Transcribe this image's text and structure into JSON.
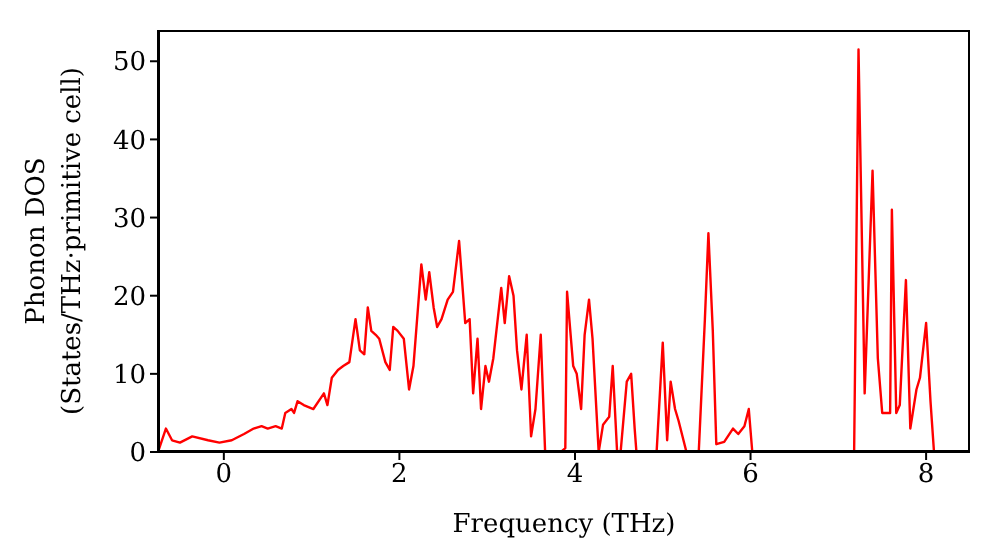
{
  "chart_data": {
    "type": "line",
    "xlabel": "Frequency (THz)",
    "ylabel": "Phonon DOS\n(States/THz·primitive cell)",
    "x": [
      -0.75,
      -0.66,
      -0.59,
      -0.5,
      -0.36,
      -0.18,
      -0.05,
      0.09,
      0.23,
      0.34,
      0.43,
      0.5,
      0.59,
      0.66,
      0.7,
      0.77,
      0.8,
      0.84,
      0.91,
      1.02,
      1.14,
      1.18,
      1.23,
      1.3,
      1.36,
      1.43,
      1.5,
      1.55,
      1.6,
      1.64,
      1.68,
      1.73,
      1.77,
      1.84,
      1.89,
      1.93,
      1.98,
      2.05,
      2.11,
      2.16,
      2.25,
      2.3,
      2.34,
      2.39,
      2.43,
      2.48,
      2.55,
      2.61,
      2.68,
      2.75,
      2.8,
      2.84,
      2.89,
      2.93,
      2.98,
      3.02,
      3.07,
      3.16,
      3.2,
      3.25,
      3.3,
      3.34,
      3.39,
      3.45,
      3.5,
      3.55,
      3.61,
      3.66,
      3.84,
      3.89,
      3.91,
      3.98,
      4.02,
      4.07,
      4.11,
      4.16,
      4.2,
      4.27,
      4.32,
      4.39,
      4.43,
      4.48,
      4.52,
      4.59,
      4.64,
      4.68,
      4.7,
      4.93,
      5.0,
      5.05,
      5.09,
      5.14,
      5.18,
      5.27,
      5.41,
      5.48,
      5.52,
      5.57,
      5.61,
      5.7,
      5.8,
      5.86,
      5.93,
      5.98,
      6.02,
      7.18,
      7.23,
      7.3,
      7.39,
      7.45,
      7.5,
      7.59,
      7.61,
      7.66,
      7.7,
      7.77,
      7.82,
      7.89,
      7.93,
      8.0,
      8.05,
      8.09
    ],
    "series": [
      {
        "color": "#ff0000",
        "values": [
          0,
          3,
          1.5,
          1.2,
          2,
          1.5,
          1.2,
          1.5,
          2.3,
          3,
          3.3,
          3,
          3.3,
          3,
          5,
          5.5,
          5,
          6.5,
          6,
          5.5,
          7.5,
          6,
          9.5,
          10.5,
          11,
          11.5,
          17,
          13,
          12.5,
          18.5,
          15.5,
          15,
          14.5,
          11.5,
          10.5,
          16,
          15.5,
          14.5,
          8,
          11,
          24,
          19.5,
          23,
          18.5,
          16,
          17,
          19.5,
          20.5,
          27,
          16.5,
          17,
          7.5,
          14.5,
          5.5,
          11,
          9,
          12,
          21,
          16.5,
          22.5,
          20,
          13,
          8,
          15,
          2,
          5.5,
          15,
          0,
          0,
          0.5,
          20.5,
          11,
          10,
          5.5,
          15,
          19.5,
          14.5,
          0,
          3.5,
          4.5,
          11,
          0,
          0,
          9,
          10,
          3,
          0,
          0,
          14,
          1.5,
          9,
          5.5,
          4,
          0,
          0,
          17,
          28,
          15.5,
          1,
          1.3,
          3,
          2.3,
          3.3,
          5.5,
          0,
          0,
          51.5,
          7.5,
          36,
          12,
          5,
          5,
          31,
          5,
          6,
          22,
          3,
          8,
          9.5,
          16.5,
          6.5,
          0
        ]
      }
    ],
    "xlim": [
      -0.75,
      8.5
    ],
    "xticks": [
      0,
      2,
      4,
      6,
      8
    ],
    "ylim": [
      0,
      54
    ],
    "yticks": [
      0,
      10,
      20,
      30,
      40,
      50
    ],
    "grid": false,
    "legend": false,
    "marker": "none",
    "line_style": "solid"
  }
}
